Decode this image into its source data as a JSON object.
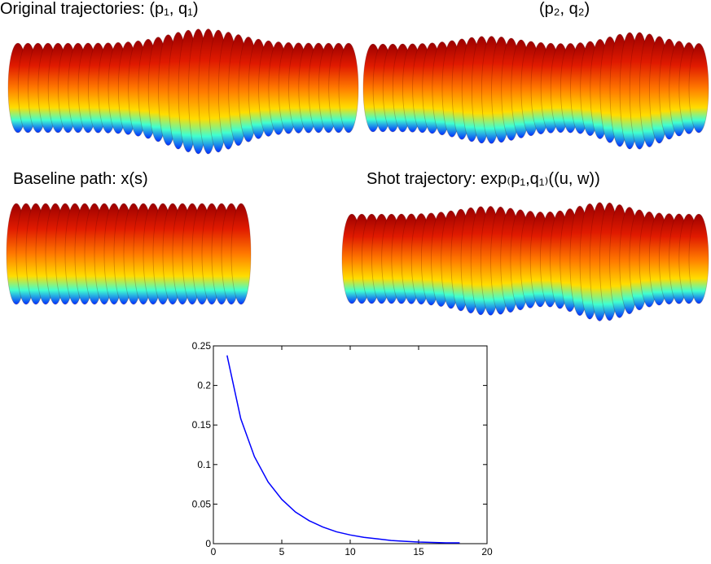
{
  "labels": {
    "panel_1": "Original trajectories: (p₁, q₁)",
    "panel_2": "(p₂, q₂)",
    "panel_3": "Baseline path: x(s)",
    "panel_4": "Shot trajectory: exp₍p₁,q₁₎((u, w))"
  },
  "chart_data": {
    "type": "line",
    "color": "#0000ff",
    "x": [
      1,
      2,
      3,
      4,
      5,
      6,
      7,
      8,
      9,
      10,
      11,
      12,
      13,
      14,
      15,
      16,
      17,
      18
    ],
    "values": [
      0.238,
      0.158,
      0.11,
      0.078,
      0.056,
      0.04,
      0.029,
      0.021,
      0.015,
      0.011,
      0.008,
      0.006,
      0.004,
      0.003,
      0.002,
      0.0015,
      0.001,
      0.001
    ],
    "xlim": [
      0,
      20
    ],
    "ylim": [
      0,
      0.25
    ],
    "xticks": [
      0,
      5,
      10,
      15,
      20
    ],
    "yticks": [
      0,
      0.05,
      0.1,
      0.15,
      0.2,
      0.25
    ]
  }
}
